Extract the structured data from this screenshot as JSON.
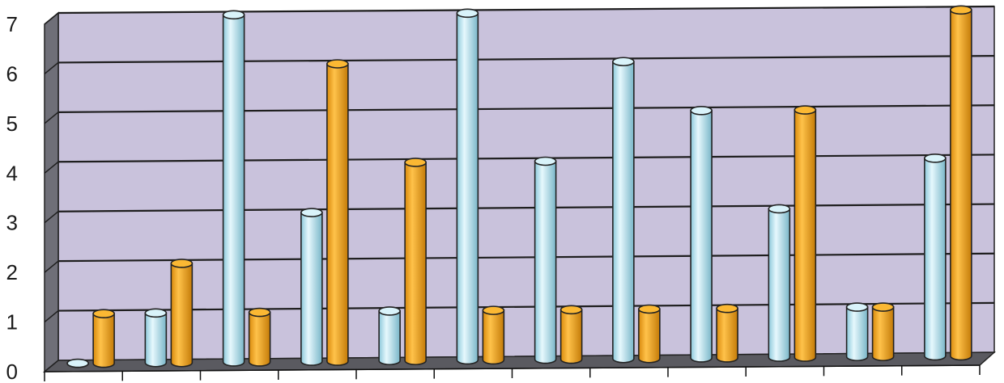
{
  "chart_data": {
    "type": "bar",
    "title": "",
    "xlabel": "",
    "ylabel": "",
    "ylim": [
      0,
      7
    ],
    "yticks": [
      "0",
      "1",
      "2",
      "3",
      "4",
      "5",
      "6",
      "7"
    ],
    "categories": [
      "",
      "",
      "",
      "",
      "",
      "",
      "",
      "",
      "",
      "",
      "",
      ""
    ],
    "grid": true,
    "legend": "none",
    "series": [
      {
        "values": [
          0,
          1,
          7,
          3,
          1,
          7,
          4,
          6,
          5,
          3,
          1,
          4
        ],
        "color": "#bfeaf5"
      },
      {
        "values": [
          1,
          2,
          1,
          6,
          4,
          1,
          1,
          1,
          1,
          5,
          1,
          7
        ],
        "color": "#f6ac1e"
      }
    ],
    "colors": {
      "plot_wall": "#c9c2dc",
      "side_wall": "#6f6f78",
      "floor": "#5a5a60",
      "grid": "#1e1e1e"
    }
  }
}
